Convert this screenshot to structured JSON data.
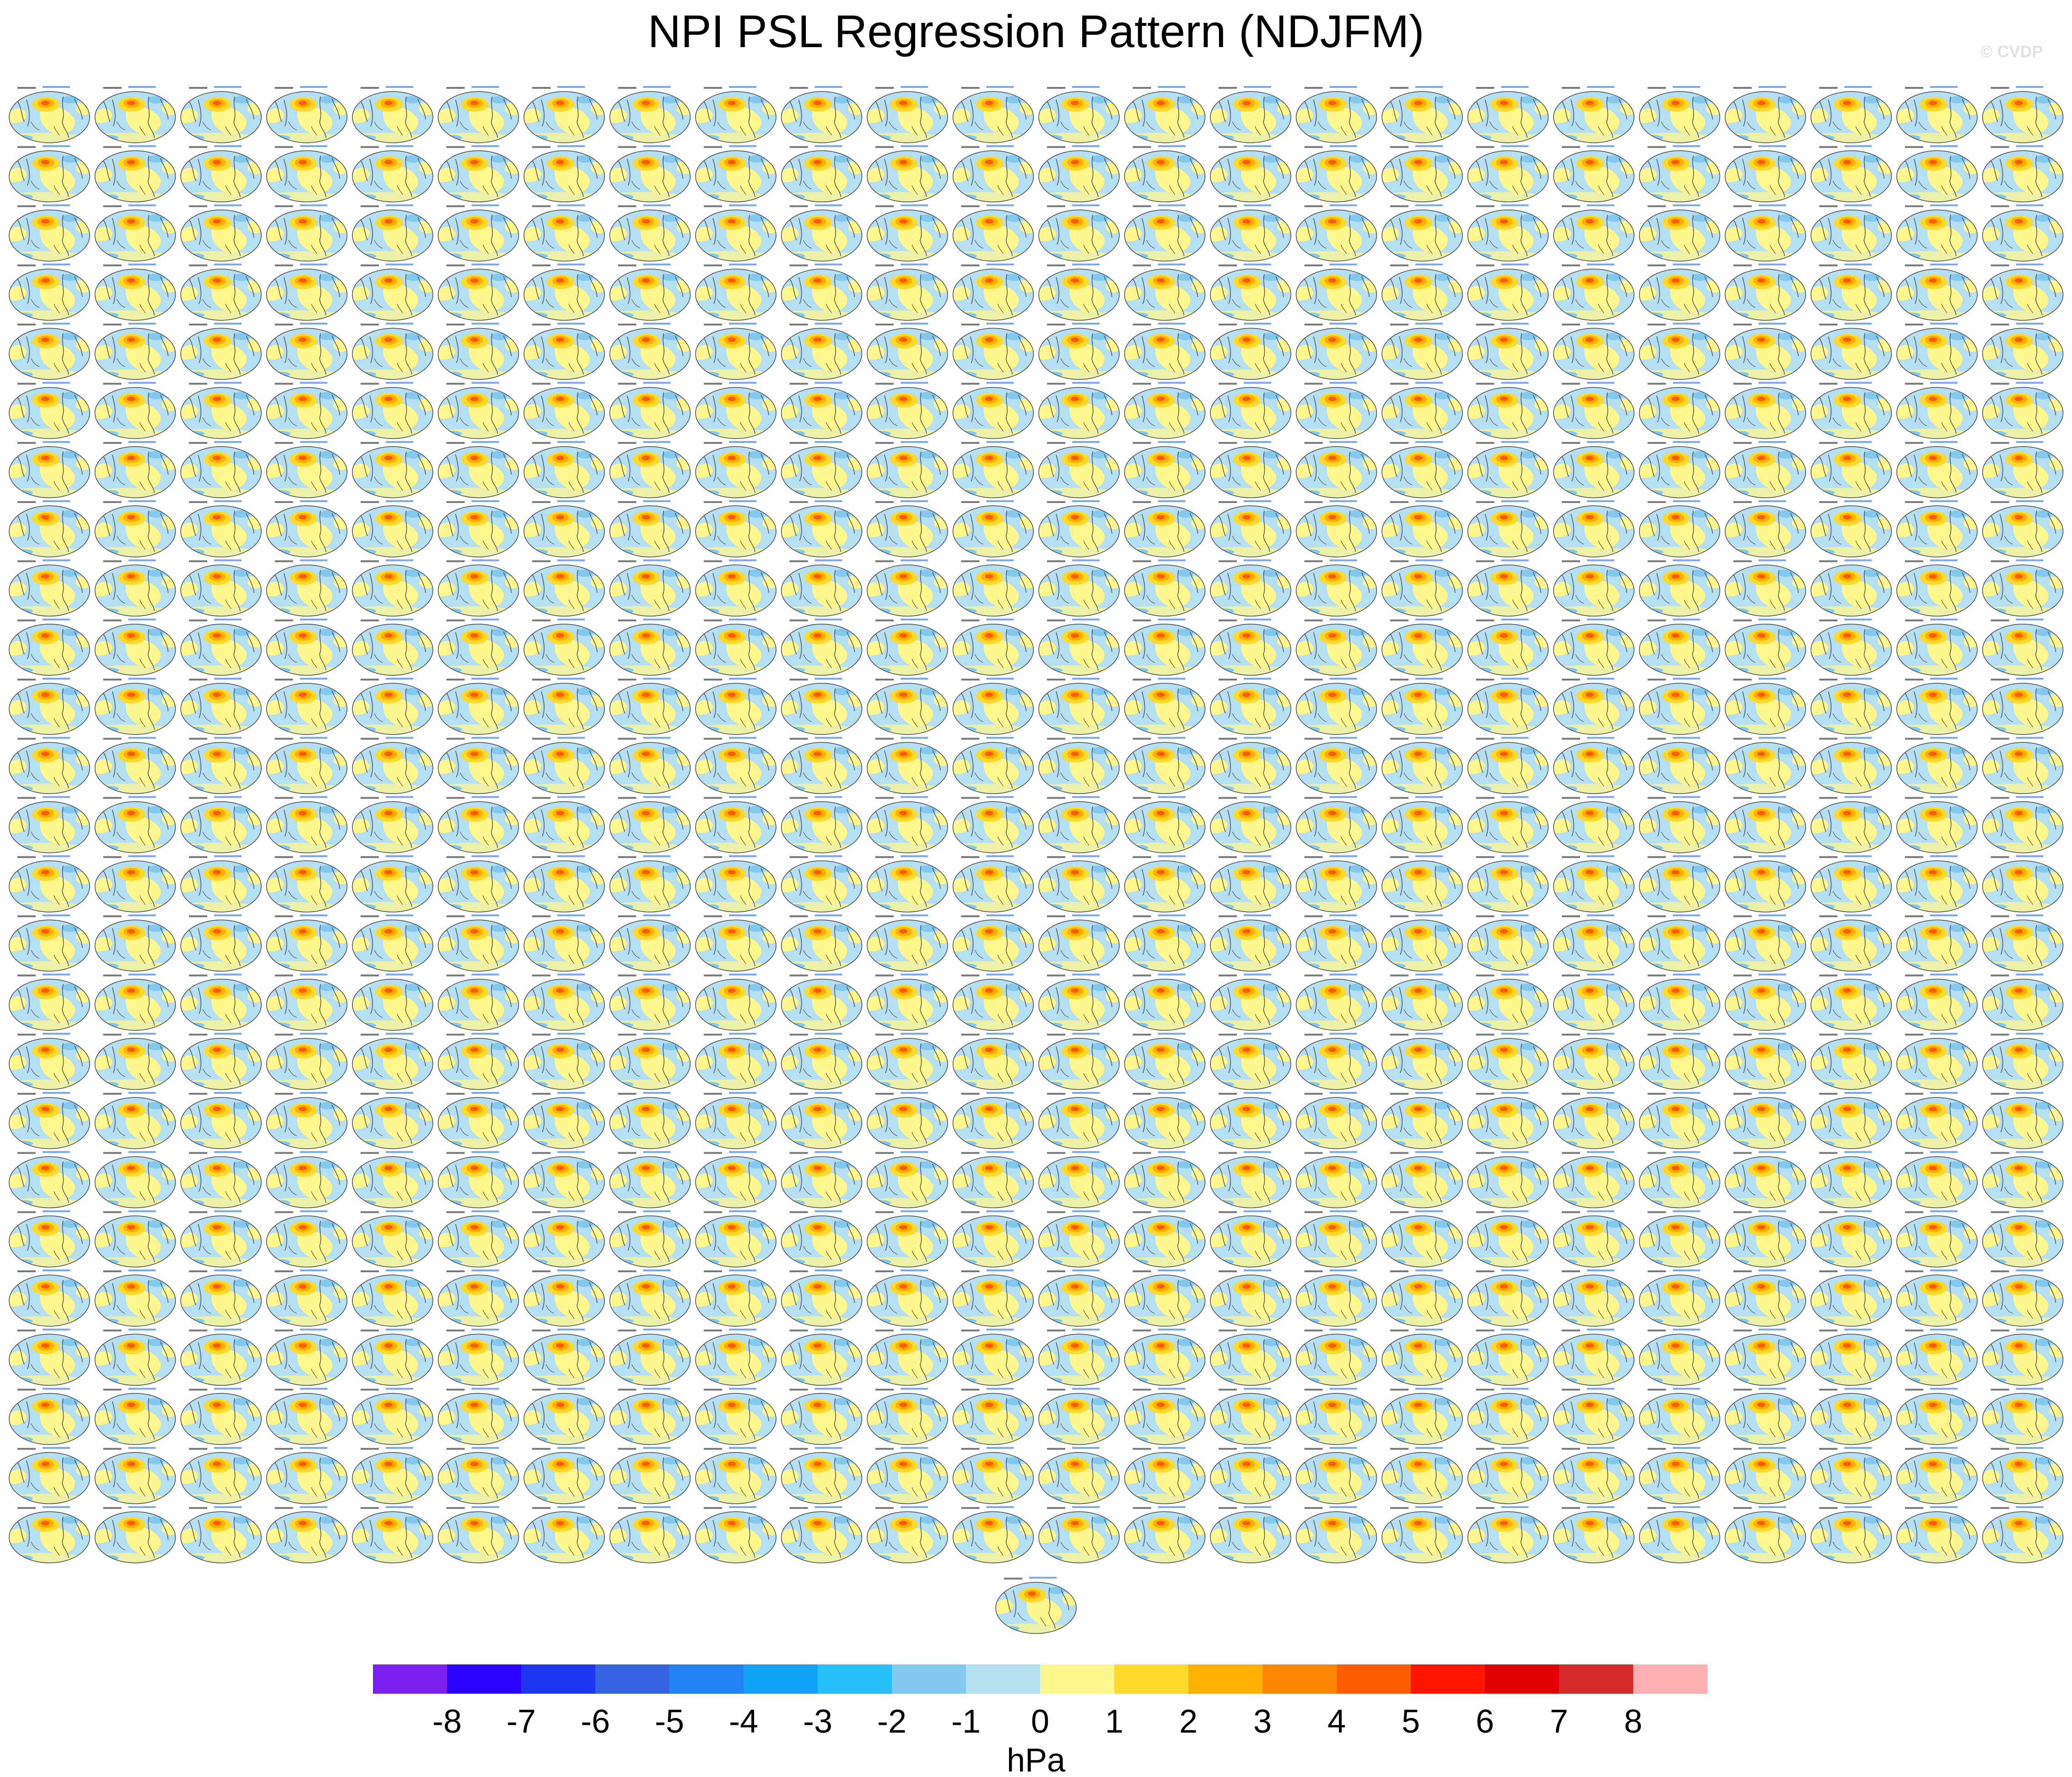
{
  "title": "NPI PSL Regression Pattern (NDJFM)",
  "watermark": "© CVDP",
  "chart_data": {
    "type": "heatmap",
    "description_kind": "panel grid of global map regression patterns",
    "title": "NPI PSL Regression Pattern (NDJFM)",
    "grid": {
      "columns": 24,
      "rows": 25,
      "extra_panels_last_row": 1
    },
    "colorbar": {
      "units": "hPa",
      "levels": [
        -8,
        -7,
        -6,
        -5,
        -4,
        -3,
        -2,
        -1,
        0,
        1,
        2,
        3,
        4,
        5,
        6,
        7,
        8
      ],
      "colors": [
        "#7d1ff0",
        "#2a00ff",
        "#1f36f0",
        "#3563e1",
        "#2383f5",
        "#12a2f5",
        "#25c0f7",
        "#83c8ee",
        "#b5dff2",
        "#fff78e",
        "#ffd92b",
        "#ffb000",
        "#ff8600",
        "#ff5c00",
        "#ff1500",
        "#e00000",
        "#d42a2a",
        "#ffb1b1"
      ]
    }
  }
}
